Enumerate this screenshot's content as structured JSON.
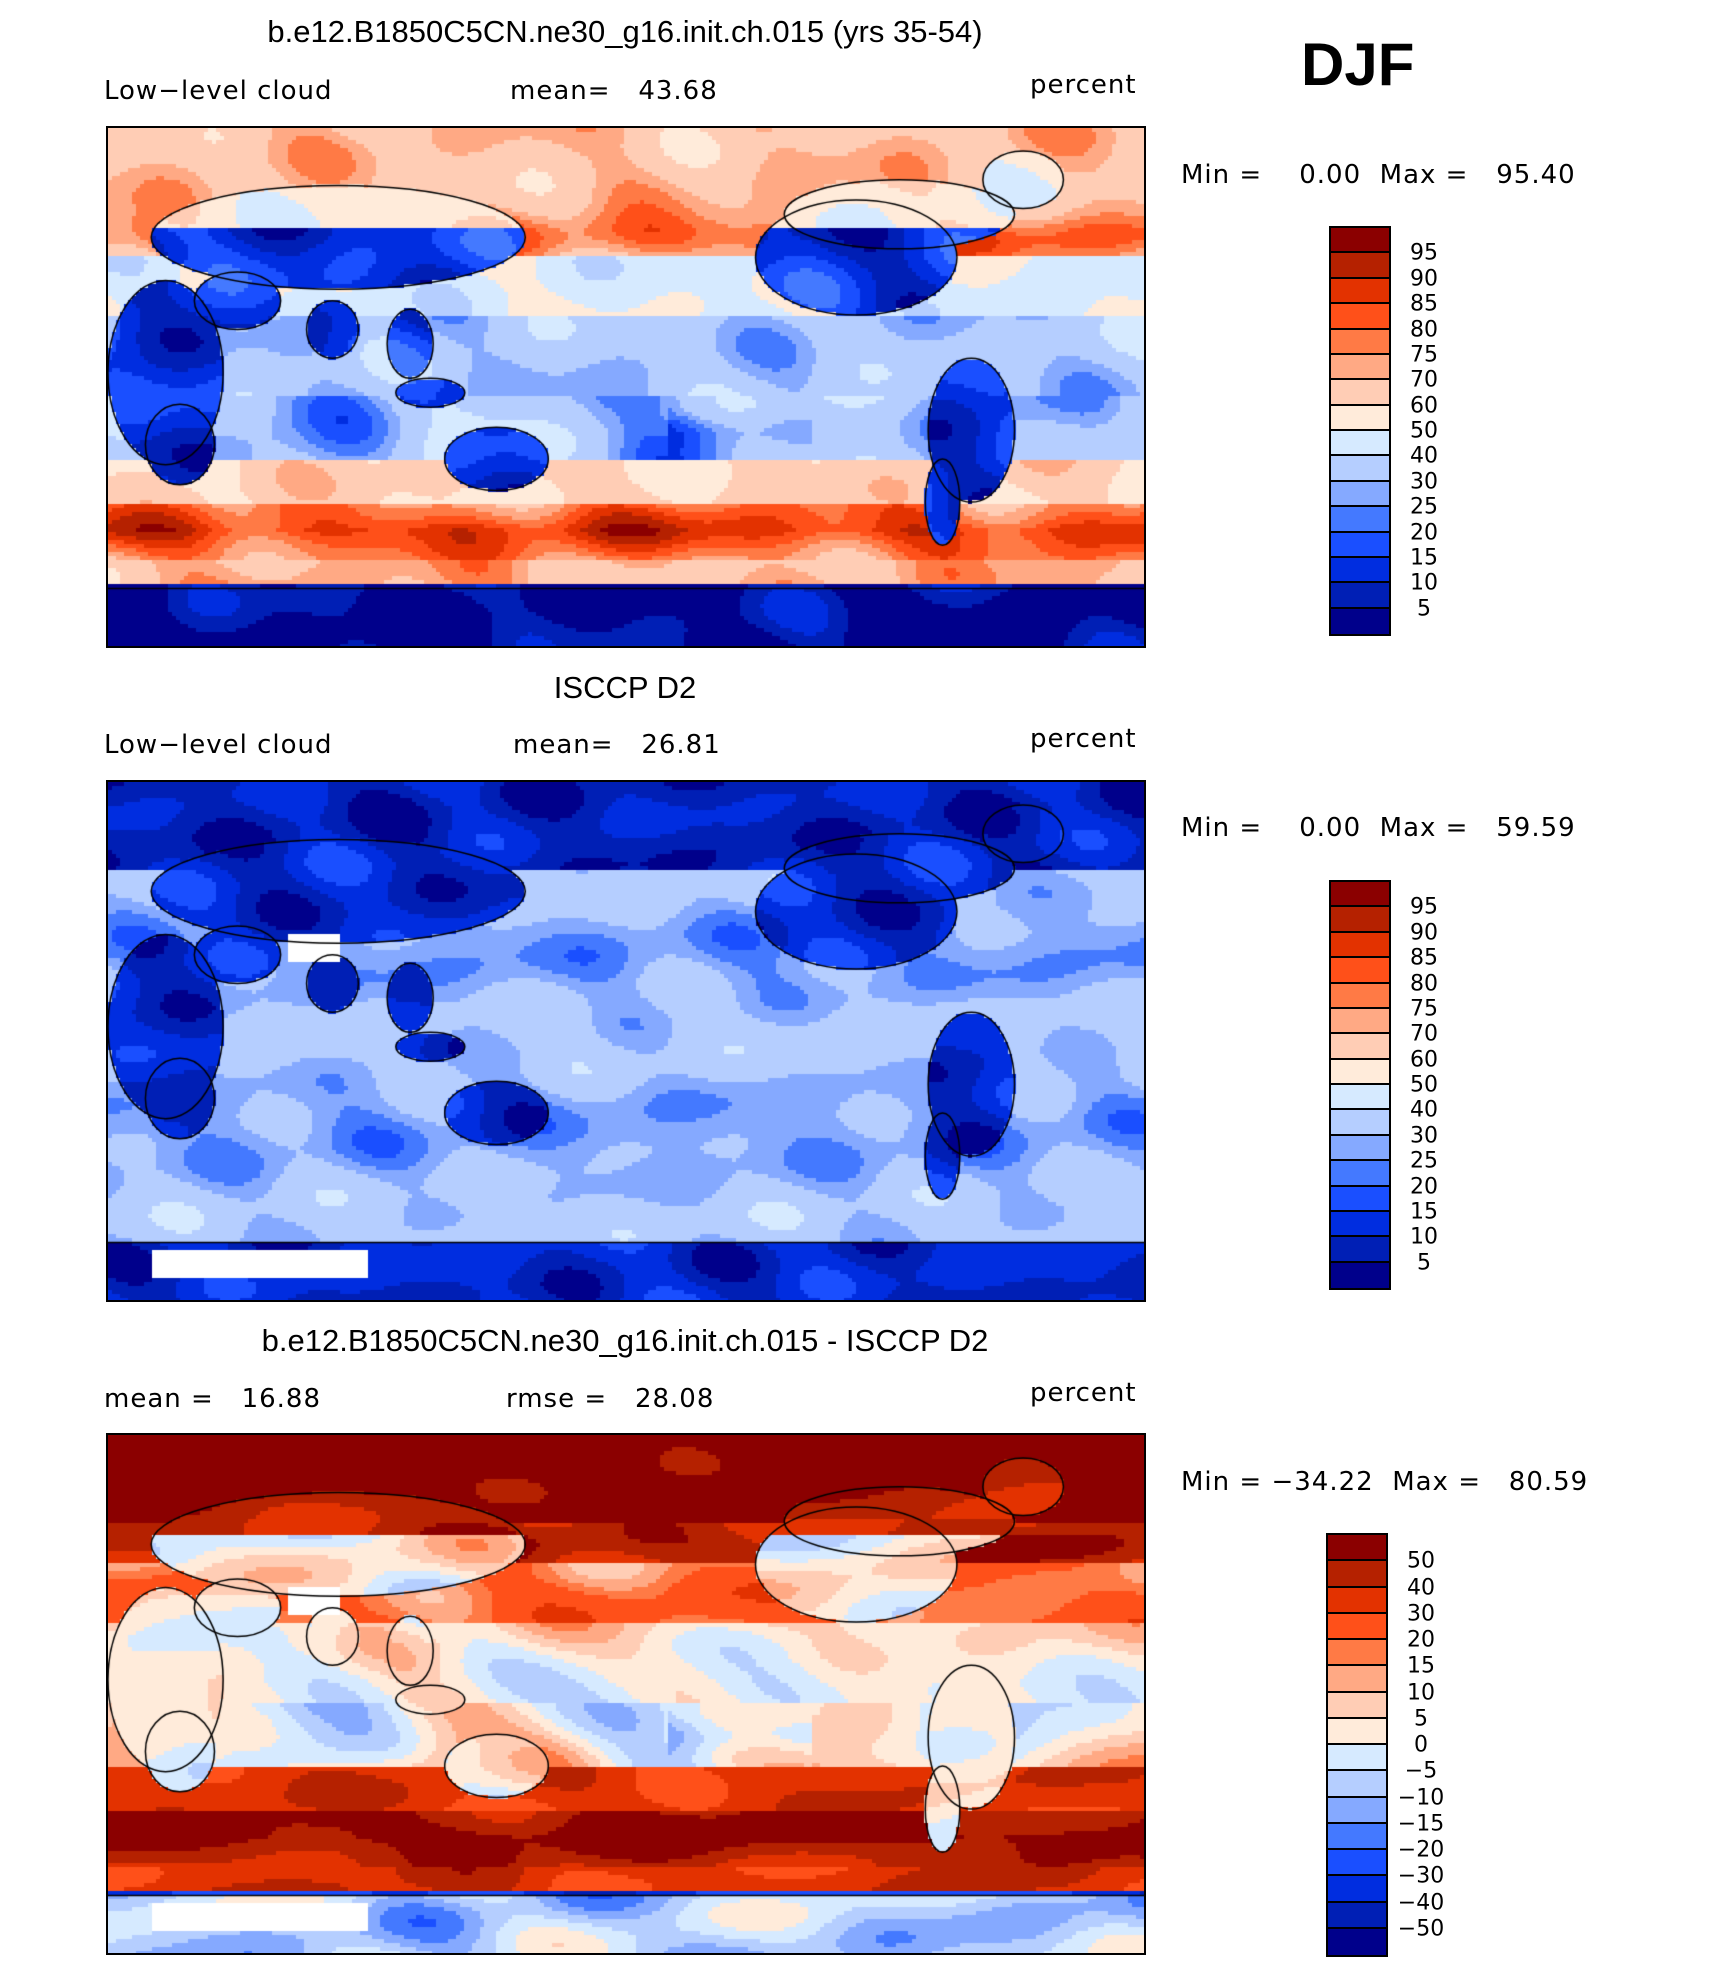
{
  "season": "DJF",
  "palette": [
    "#00008B",
    "#001FB5",
    "#002DE0",
    "#1A4FFF",
    "#4479FF",
    "#85A9FF",
    "#B5CEFF",
    "#D6EAFF",
    "#FFEBDA",
    "#FFCDB5",
    "#FFA984",
    "#FF7A45",
    "#FF5019",
    "#E33200",
    "#B52100",
    "#8B0000"
  ],
  "chart_data": [
    {
      "type": "heatmap",
      "title": "b.e12.B1850C5CN.ne30_g16.init.ch.015 (yrs 35-54)",
      "left_label": "Low−level cloud",
      "center_label": "mean=   43.68",
      "units": "percent",
      "minmax": "Min =    0.00  Max =   95.40",
      "levels": [
        "95",
        "90",
        "85",
        "80",
        "75",
        "70",
        "60",
        "50",
        "40",
        "30",
        "25",
        "20",
        "15",
        "10",
        "5"
      ]
    },
    {
      "type": "heatmap",
      "title": "ISCCP D2",
      "left_label": "Low−level cloud",
      "center_label": "mean=   26.81",
      "units": "percent",
      "minmax": "Min =    0.00  Max =   59.59",
      "levels": [
        "95",
        "90",
        "85",
        "80",
        "75",
        "70",
        "60",
        "50",
        "40",
        "30",
        "25",
        "20",
        "15",
        "10",
        "5"
      ]
    },
    {
      "type": "heatmap",
      "title": "b.e12.B1850C5CN.ne30_g16.init.ch.015 - ISCCP D2",
      "left_label": "mean =   16.88",
      "center_label": "rmse =   28.08",
      "units": "percent",
      "minmax": "Min = −34.22  Max =   80.59",
      "levels": [
        "50",
        "40",
        "30",
        "20",
        "15",
        "10",
        "5",
        "0",
        "−5",
        "−10",
        "−15",
        "−20",
        "−30",
        "−40",
        "−50"
      ]
    }
  ]
}
